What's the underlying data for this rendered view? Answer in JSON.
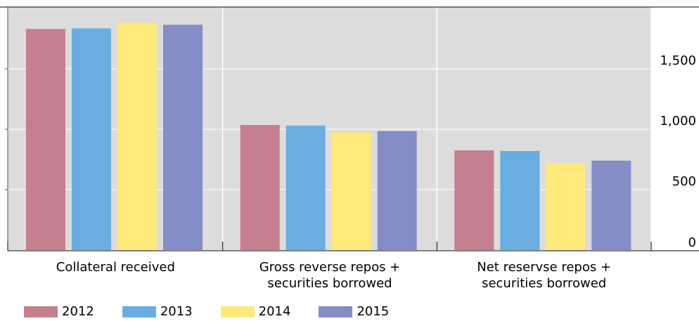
{
  "chart_data": {
    "type": "bar",
    "categories": [
      [
        "Collateral received"
      ],
      [
        "Gross reverse repos +",
        "securities borrowed"
      ],
      [
        "Net reservse repos +",
        "securities borrowed"
      ]
    ],
    "series": [
      {
        "name": "2012",
        "color": "#c47f8d",
        "values": [
          1830,
          1035,
          825
        ]
      },
      {
        "name": "2013",
        "color": "#6aade0",
        "values": [
          1835,
          1030,
          820
        ]
      },
      {
        "name": "2014",
        "color": "#ffe97a",
        "values": [
          1880,
          975,
          720
        ]
      },
      {
        "name": "2015",
        "color": "#848dc6",
        "values": [
          1865,
          985,
          740
        ]
      }
    ],
    "yticks": [
      "0",
      "500",
      "1,000",
      "1,500"
    ],
    "ylim": [
      0,
      2000
    ],
    "grid": true,
    "plot_background": "#dcdcdc",
    "legend_position": "bottom-left",
    "axis_side": "right"
  }
}
